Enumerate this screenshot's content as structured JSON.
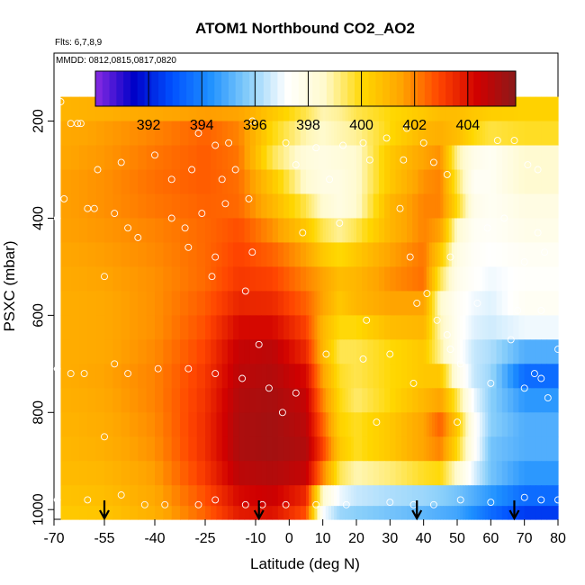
{
  "chart_data": {
    "type": "heatmap",
    "title": "ATOM1 Northbound CO2_AO2",
    "flights_label": "Flts: 6,7,8,9",
    "dates_label": "MMDD: 0812,0815,0817,0820",
    "xlabel": "Latitude (deg N)",
    "ylabel": "PSXC (mbar)",
    "xlim": [
      -70,
      80
    ],
    "ylim": [
      1020,
      60
    ],
    "x_ticks": [
      -70,
      -55,
      -40,
      -25,
      -10,
      0,
      10,
      20,
      30,
      40,
      50,
      60,
      70,
      80
    ],
    "y_ticks": [
      200,
      400,
      600,
      800,
      1000
    ],
    "colorbar": {
      "range": [
        390,
        405.8
      ],
      "ticks": [
        392,
        394,
        396,
        398,
        400,
        402,
        404
      ],
      "colors": [
        "#8a2be2",
        "#0000c8",
        "#0050ff",
        "#1e90ff",
        "#87cefa",
        "#ffffff",
        "#fffacd",
        "#ffd700",
        "#ffa500",
        "#ff4500",
        "#d00000",
        "#8b1a1a"
      ]
    },
    "x_bands": [
      -70,
      -55,
      -40,
      -25,
      -15,
      -5,
      5,
      10,
      15,
      20,
      30,
      40,
      45,
      50,
      55,
      60,
      70,
      80
    ],
    "pressure_levels": [
      175,
      225,
      275,
      325,
      375,
      425,
      475,
      525,
      575,
      625,
      675,
      725,
      775,
      825,
      875,
      925,
      975,
      1010
    ],
    "z_values": [
      [
        401.0,
        401.2,
        401.4,
        401.6,
        401.5,
        400.5,
        399.5,
        398.8,
        399.0,
        399.5,
        400.0,
        400.5,
        400.8,
        400.8,
        400.5,
        400.3,
        400.2
      ],
      [
        401.3,
        401.6,
        402.0,
        402.5,
        402.0,
        400.0,
        398.8,
        398.6,
        398.8,
        399.0,
        400.0,
        401.0,
        401.2,
        400.8,
        400.0,
        399.6,
        399.8
      ],
      [
        401.4,
        401.7,
        402.2,
        402.6,
        402.2,
        399.5,
        398.2,
        398.0,
        398.2,
        398.5,
        400.5,
        401.5,
        401.8,
        399.0,
        397.8,
        397.5,
        398.5
      ],
      [
        401.5,
        401.8,
        402.3,
        402.6,
        402.3,
        400.5,
        398.5,
        398.0,
        398.0,
        398.5,
        400.5,
        401.8,
        402.0,
        399.5,
        397.5,
        397.5,
        398.5
      ],
      [
        401.5,
        401.8,
        402.2,
        402.5,
        402.4,
        401.0,
        399.5,
        398.5,
        398.0,
        398.5,
        401.0,
        402.0,
        402.0,
        400.0,
        397.8,
        397.5,
        398.0
      ],
      [
        401.5,
        401.7,
        402.0,
        402.4,
        402.8,
        401.8,
        400.5,
        399.5,
        399.0,
        399.5,
        401.0,
        402.0,
        401.5,
        398.5,
        397.5,
        397.4,
        397.8
      ],
      [
        401.4,
        401.6,
        401.9,
        402.4,
        403.0,
        402.5,
        401.5,
        400.5,
        400.0,
        400.5,
        401.5,
        402.2,
        400.5,
        398.0,
        397.4,
        397.2,
        397.5
      ],
      [
        401.3,
        401.5,
        401.8,
        402.4,
        403.2,
        403.0,
        402.0,
        401.5,
        400.8,
        401.0,
        401.8,
        402.3,
        399.5,
        397.8,
        397.3,
        397.0,
        397.3
      ],
      [
        401.2,
        401.4,
        401.8,
        402.6,
        403.6,
        403.5,
        402.5,
        401.5,
        400.5,
        401.0,
        401.5,
        401.5,
        398.5,
        397.5,
        397.0,
        396.8,
        397.5
      ],
      [
        401.2,
        401.4,
        401.8,
        402.8,
        404.2,
        404.2,
        403.0,
        401.0,
        400.0,
        400.0,
        400.8,
        401.0,
        398.8,
        397.5,
        396.8,
        396.6,
        397.0
      ],
      [
        401.2,
        401.4,
        401.9,
        403.0,
        404.6,
        404.8,
        403.5,
        401.0,
        399.5,
        399.5,
        400.0,
        400.5,
        399.0,
        397.5,
        396.5,
        396.2,
        395.0
      ],
      [
        401.2,
        401.5,
        402.0,
        403.2,
        404.8,
        405.0,
        404.2,
        401.5,
        399.8,
        399.5,
        400.0,
        400.5,
        400.5,
        398.0,
        396.5,
        396.0,
        393.5
      ],
      [
        401.1,
        401.4,
        402.0,
        403.3,
        405.0,
        405.2,
        404.6,
        402.0,
        400.0,
        399.3,
        400.0,
        401.0,
        401.5,
        399.5,
        397.0,
        395.8,
        394.5
      ],
      [
        401.0,
        401.3,
        401.9,
        403.4,
        405.1,
        405.3,
        404.8,
        402.5,
        400.2,
        399.8,
        400.5,
        401.5,
        402.5,
        400.5,
        397.5,
        395.8,
        395.0
      ],
      [
        400.9,
        401.2,
        401.8,
        403.4,
        405.1,
        405.3,
        405.0,
        403.0,
        400.5,
        399.8,
        400.5,
        401.5,
        402.0,
        400.0,
        397.5,
        395.5,
        395.0
      ],
      [
        400.8,
        401.0,
        401.6,
        403.2,
        404.8,
        405.0,
        404.6,
        402.0,
        399.5,
        398.8,
        399.2,
        399.8,
        400.0,
        398.5,
        396.8,
        395.5,
        394.5
      ],
      [
        400.6,
        400.8,
        401.4,
        402.8,
        404.2,
        404.5,
        403.5,
        398.5,
        397.0,
        396.5,
        396.2,
        396.0,
        395.8,
        395.5,
        395.0,
        394.5,
        393.5
      ],
      [
        400.4,
        400.6,
        401.2,
        402.5,
        403.8,
        404.0,
        402.8,
        397.2,
        396.0,
        395.8,
        395.5,
        395.2,
        395.0,
        394.8,
        394.2,
        393.5,
        392.5
      ]
    ],
    "sample_points": [
      [
        -68,
        160
      ],
      [
        -65,
        205
      ],
      [
        -63,
        205
      ],
      [
        -62,
        205
      ],
      [
        -27,
        225
      ],
      [
        -29,
        300
      ],
      [
        -31,
        420
      ],
      [
        -30,
        460
      ],
      [
        -16,
        300
      ],
      [
        -12,
        360
      ],
      [
        -22,
        480
      ],
      [
        -57,
        300
      ],
      [
        -50,
        285
      ],
      [
        -45,
        440
      ],
      [
        -52,
        390
      ],
      [
        -67,
        360
      ],
      [
        -58,
        380
      ],
      [
        -40,
        270
      ],
      [
        -35,
        320
      ],
      [
        -22,
        250
      ],
      [
        -18,
        245
      ],
      [
        -20,
        320
      ],
      [
        -11,
        200
      ],
      [
        -1,
        245
      ],
      [
        8,
        255
      ],
      [
        16,
        250
      ],
      [
        22,
        245
      ],
      [
        2,
        290
      ],
      [
        12,
        320
      ],
      [
        15,
        410
      ],
      [
        24,
        280
      ],
      [
        29,
        235
      ],
      [
        35,
        215
      ],
      [
        40,
        245
      ],
      [
        34,
        280
      ],
      [
        43,
        285
      ],
      [
        47,
        310
      ],
      [
        62,
        240
      ],
      [
        67,
        240
      ],
      [
        71,
        290
      ],
      [
        74,
        300
      ],
      [
        -69,
        400
      ],
      [
        -60,
        380
      ],
      [
        -48,
        420
      ],
      [
        -35,
        400
      ],
      [
        -26,
        390
      ],
      [
        -19,
        370
      ],
      [
        -11,
        470
      ],
      [
        4,
        430
      ],
      [
        33,
        380
      ],
      [
        36,
        480
      ],
      [
        48,
        480
      ],
      [
        59,
        420
      ],
      [
        64,
        400
      ],
      [
        70,
        490
      ],
      [
        74,
        430
      ],
      [
        76,
        470
      ],
      [
        -55,
        520
      ],
      [
        -23,
        520
      ],
      [
        -13,
        550
      ],
      [
        23,
        610
      ],
      [
        38,
        575
      ],
      [
        41,
        555
      ],
      [
        44,
        610
      ],
      [
        47,
        640
      ],
      [
        56,
        575
      ],
      [
        68,
        590
      ],
      [
        75,
        590
      ],
      [
        -69,
        710
      ],
      [
        -65,
        720
      ],
      [
        -61,
        720
      ],
      [
        -52,
        700
      ],
      [
        -48,
        720
      ],
      [
        -39,
        710
      ],
      [
        -30,
        710
      ],
      [
        -22,
        720
      ],
      [
        -14,
        730
      ],
      [
        -9,
        660
      ],
      [
        -6,
        750
      ],
      [
        2,
        760
      ],
      [
        11,
        680
      ],
      [
        22,
        690
      ],
      [
        30,
        680
      ],
      [
        37,
        740
      ],
      [
        48,
        670
      ],
      [
        51,
        700
      ],
      [
        60,
        740
      ],
      [
        66,
        650
      ],
      [
        70,
        750
      ],
      [
        73,
        720
      ],
      [
        75,
        730
      ],
      [
        77,
        770
      ],
      [
        80,
        670
      ],
      [
        -2,
        800
      ],
      [
        26,
        820
      ],
      [
        50,
        820
      ],
      [
        -55,
        850
      ],
      [
        -69,
        980
      ],
      [
        -60,
        980
      ],
      [
        -50,
        970
      ],
      [
        -43,
        990
      ],
      [
        -37,
        990
      ],
      [
        -27,
        990
      ],
      [
        -22,
        980
      ],
      [
        -13,
        990
      ],
      [
        -8,
        990
      ],
      [
        -1,
        990
      ],
      [
        8,
        990
      ],
      [
        17,
        990
      ],
      [
        30,
        985
      ],
      [
        37,
        990
      ],
      [
        43,
        990
      ],
      [
        51,
        980
      ],
      [
        60,
        985
      ],
      [
        70,
        975
      ],
      [
        75,
        980
      ],
      [
        80,
        980
      ]
    ],
    "arrows_latitude": [
      -55,
      -9,
      38,
      67
    ]
  }
}
